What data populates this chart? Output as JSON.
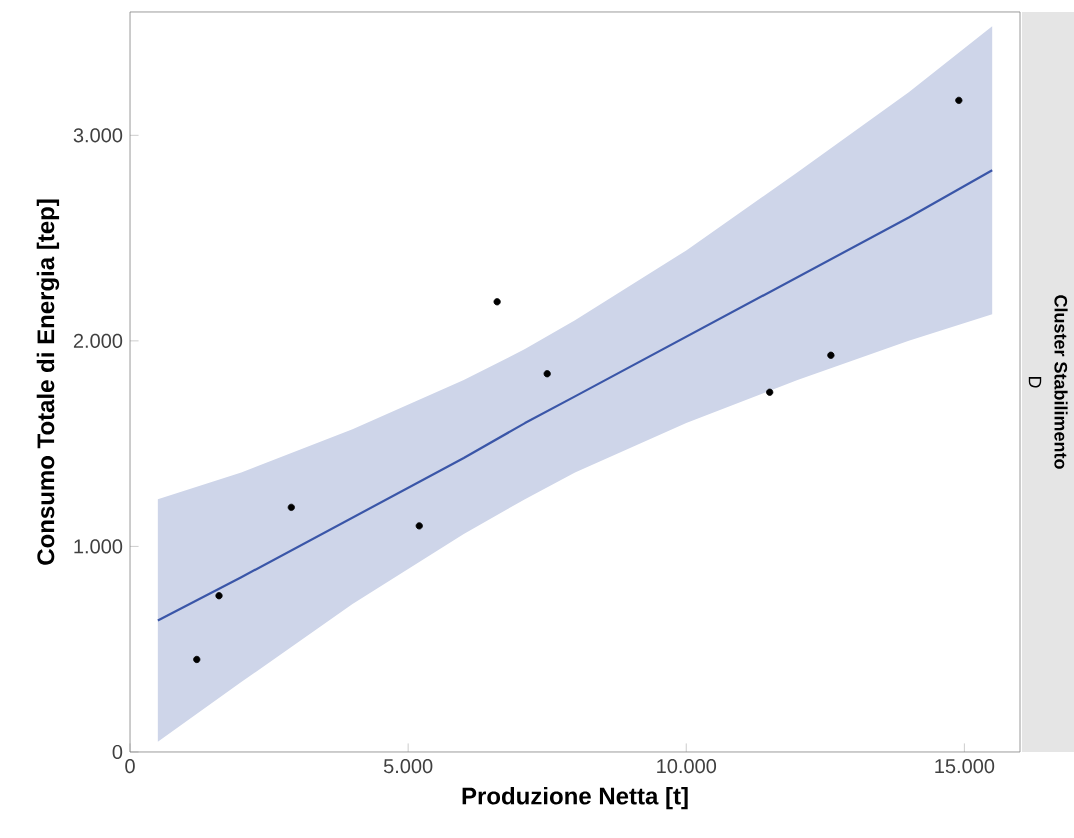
{
  "chart_data": {
    "type": "scatter",
    "xlabel": "Produzione Netta [t]",
    "ylabel": "Consumo Totale di Energia [tep]",
    "xlim": [
      0,
      16000
    ],
    "ylim": [
      0,
      3600
    ],
    "xticks": [
      0,
      {
        "value": 5000,
        "label": "5.000"
      },
      {
        "value": 10000,
        "label": "10.000"
      },
      {
        "value": 15000,
        "label": "15.000"
      }
    ],
    "yticks": [
      0,
      {
        "value": 1000,
        "label": "1.000"
      },
      {
        "value": 2000,
        "label": "2.000"
      },
      {
        "value": 3000,
        "label": "3.000"
      }
    ],
    "grid": false,
    "annotations": [
      "Cluster Stabilimento",
      "D"
    ],
    "series": [
      {
        "color": "#000000",
        "marker": "circle",
        "x": [
          1200,
          1600,
          2900,
          5200,
          6600,
          7500,
          11500,
          12600,
          14900
        ],
        "values": [
          450,
          760,
          1190,
          1100,
          2190,
          1840,
          1750,
          1930,
          3170
        ]
      },
      {
        "type": "line",
        "color": "#3a56a8",
        "marker": "none",
        "x": [
          500,
          2000,
          4000,
          6000,
          7100,
          8000,
          10000,
          12000,
          14000,
          15500
        ],
        "values": [
          640,
          850,
          1140,
          1430,
          1600,
          1730,
          2020,
          2310,
          2600,
          2830
        ],
        "lower": [
          50,
          340,
          720,
          1060,
          1230,
          1360,
          1600,
          1810,
          2000,
          2130
        ],
        "upper": [
          1230,
          1360,
          1570,
          1810,
          1960,
          2100,
          2440,
          2820,
          3210,
          3530
        ]
      }
    ]
  }
}
